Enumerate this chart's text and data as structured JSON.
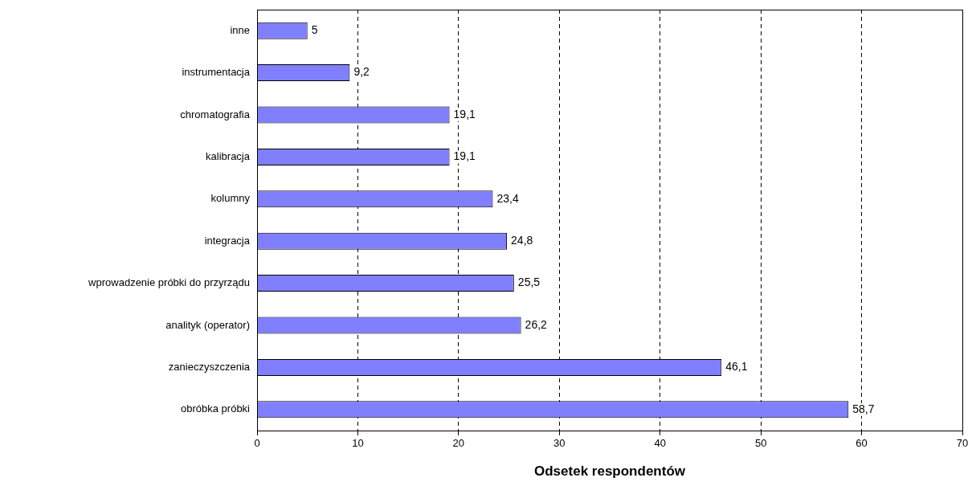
{
  "chart_data": {
    "type": "bar",
    "orientation": "horizontal",
    "xlabel": "Odsetek respondentów",
    "categories": [
      "inne",
      "instrumentacja",
      "chromatografia",
      "kalibracja",
      "kolumny",
      "integracja",
      "wprowadzenie próbki do przyrządu",
      "analityk (operator)",
      "zanieczyszczenia",
      "obróbka próbki"
    ],
    "values": [
      5,
      9.2,
      19.1,
      19.1,
      23.4,
      24.8,
      25.5,
      26.2,
      46.1,
      58.7
    ],
    "value_labels": [
      "5",
      "9,2",
      "19,1",
      "19,1",
      "23,4",
      "24,8",
      "25,5",
      "26,2",
      "46,1",
      "58,7"
    ],
    "color": "#8080ff",
    "xlim": [
      0,
      70
    ],
    "xticks": [
      0,
      10,
      20,
      30,
      40,
      50,
      60,
      70
    ],
    "grid": "x",
    "legend": false
  }
}
